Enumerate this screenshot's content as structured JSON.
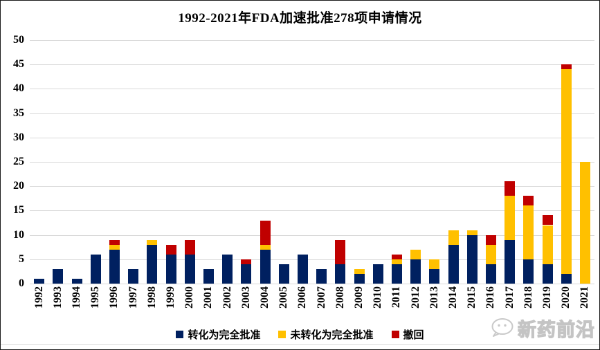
{
  "page": {
    "title": "1992-2021年FDA加速批准278项申请情况",
    "watermark": "新药前沿"
  },
  "chart_data": {
    "type": "bar",
    "stacked": true,
    "title": "1992-2021年FDA加速批准278项申请情况",
    "categories": [
      "1992",
      "1993",
      "1994",
      "1995",
      "1996",
      "1997",
      "1998",
      "1999",
      "2000",
      "2001",
      "2002",
      "2003",
      "2004",
      "2005",
      "2006",
      "2007",
      "2008",
      "2009",
      "2010",
      "2011",
      "2012",
      "2013",
      "2014",
      "2015",
      "2016",
      "2017",
      "2018",
      "2019",
      "2020",
      "2021"
    ],
    "series": [
      {
        "name": "转化为完全批准",
        "color": "#002060",
        "values": [
          1,
          3,
          1,
          6,
          7,
          3,
          8,
          6,
          6,
          3,
          6,
          4,
          7,
          4,
          6,
          3,
          4,
          2,
          4,
          4,
          5,
          3,
          8,
          10,
          4,
          9,
          5,
          4,
          2,
          0
        ]
      },
      {
        "name": "未转化为完全批准",
        "color": "#FFC000",
        "values": [
          0,
          0,
          0,
          0,
          1,
          0,
          1,
          0,
          0,
          0,
          0,
          0,
          1,
          0,
          0,
          0,
          0,
          1,
          0,
          1,
          2,
          2,
          3,
          1,
          4,
          9,
          11,
          8,
          42,
          25
        ]
      },
      {
        "name": "撤回",
        "color": "#C00000",
        "values": [
          0,
          0,
          0,
          0,
          1,
          0,
          0,
          2,
          3,
          0,
          0,
          1,
          5,
          0,
          0,
          0,
          5,
          0,
          0,
          1,
          0,
          0,
          0,
          0,
          2,
          3,
          2,
          2,
          1,
          0
        ]
      }
    ],
    "totals_sum": 278,
    "ylim": [
      0,
      50
    ],
    "yticks": [
      0,
      5,
      10,
      15,
      20,
      25,
      30,
      35,
      40,
      45,
      50
    ],
    "grid": true,
    "legend_position": "bottom",
    "xlabel": "",
    "ylabel": ""
  },
  "colors": {
    "grid": "#d9d9d9",
    "axis_text": "#000000",
    "background": "#ffffff",
    "watermark_gray": "#c4c4c4"
  }
}
